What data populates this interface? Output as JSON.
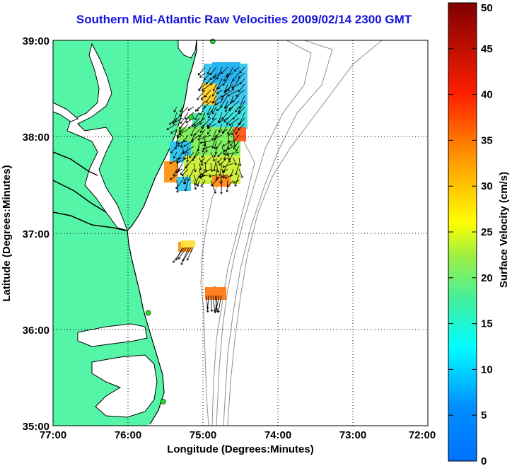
{
  "title": "Southern Mid-Atlantic Raw Velocities 2009/02/14 2300 GMT",
  "xaxis": {
    "label": "Longitude (Degrees:Minutes)",
    "ticks": [
      "77:00",
      "76:00",
      "75:00",
      "74:00",
      "73:00",
      "72:00"
    ],
    "range": [
      -77,
      -72
    ]
  },
  "yaxis": {
    "label": "Latitude (Degrees:Minutes)",
    "ticks": [
      "39:00",
      "38:00",
      "37:00",
      "36:00",
      "35:00"
    ],
    "range": [
      35,
      39
    ]
  },
  "colorbar": {
    "label": "Surface Velocity (cm/s)",
    "ticks": [
      "50",
      "45",
      "40",
      "35",
      "30",
      "25",
      "20",
      "15",
      "10",
      "5",
      "0"
    ],
    "range": [
      0,
      50
    ]
  },
  "colors": {
    "land": "#55f5a8",
    "title": "#1515d8",
    "arrows": "#000000",
    "bathymetry": "#909090",
    "stations": "#22dd22"
  },
  "stations": [
    {
      "lon": -74.87,
      "lat": 38.99
    },
    {
      "lon": -75.16,
      "lat": 38.2
    },
    {
      "lon": -75.73,
      "lat": 36.17
    },
    {
      "lon": -75.53,
      "lat": 35.25
    }
  ]
}
